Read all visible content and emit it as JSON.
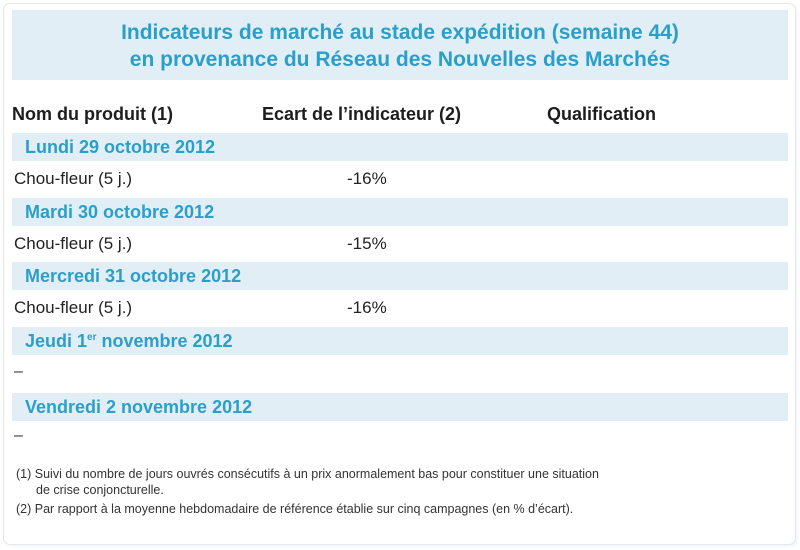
{
  "title": {
    "line1": "Indicateurs de marché au stade expédition (semaine 44)",
    "line2": "en provenance du Réseau des Nouvelles des Marchés"
  },
  "columns": {
    "product": "Nom du produit (1)",
    "ecart": "Ecart de l’indicateur (2)",
    "qualification": "Qualification"
  },
  "days": [
    {
      "label": "Lundi 29 octobre 2012",
      "product": "Chou-fleur (5 j.)",
      "ecart": "-16%"
    },
    {
      "label": "Mardi 30 octobre 2012",
      "product": "Chou-fleur (5 j.)",
      "ecart": "-15%"
    },
    {
      "label": "Mercredi 31 octobre 2012",
      "product": "Chou-fleur (5 j.)",
      "ecart": "-16%"
    },
    {
      "label_pre": "Jeudi 1",
      "label_sup": "er",
      "label_post": " novembre 2012",
      "empty": "–"
    },
    {
      "label": "Vendredi 2 novembre 2012",
      "empty": "–"
    }
  ],
  "notes": {
    "n1_a": "(1) Suivi du nombre de jours ouvrés consécutifs à un prix anormalement bas pour constituer une situation",
    "n1_b": "de crise conjoncturelle.",
    "n2": "(2) Par rapport à la moyenne hebdomadaire de référence établie sur cinq campagnes (en % d’écart)."
  },
  "colors": {
    "accent": "#2a9fc9",
    "band": "#e2eef5"
  }
}
